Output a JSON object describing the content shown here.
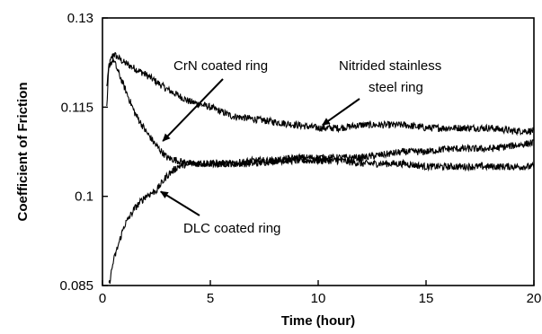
{
  "chart_data": {
    "type": "line",
    "xlabel": "Time (hour)",
    "ylabel": "Coefficient of Friction",
    "xlim": [
      0,
      20
    ],
    "ylim": [
      0.085,
      0.13
    ],
    "x_ticks": [
      {
        "value": 0,
        "label": "0"
      },
      {
        "value": 5,
        "label": "5"
      },
      {
        "value": 10,
        "label": "10"
      },
      {
        "value": 15,
        "label": "15"
      },
      {
        "value": 20,
        "label": "20"
      }
    ],
    "y_ticks": [
      {
        "value": 0.085,
        "label": "0.085"
      },
      {
        "value": 0.1,
        "label": "0.1"
      },
      {
        "value": 0.115,
        "label": "0.115"
      },
      {
        "value": 0.13,
        "label": "0.13"
      }
    ],
    "grid": false,
    "legend": "none",
    "series": [
      {
        "name": "Nitrided stainless steel ring",
        "points": [
          [
            0.2,
            0.115
          ],
          [
            0.3,
            0.122
          ],
          [
            0.5,
            0.124
          ],
          [
            1,
            0.1225
          ],
          [
            2,
            0.1205
          ],
          [
            3,
            0.118
          ],
          [
            4,
            0.116
          ],
          [
            5,
            0.115
          ],
          [
            6,
            0.1135
          ],
          [
            7,
            0.113
          ],
          [
            8,
            0.1125
          ],
          [
            9,
            0.112
          ],
          [
            10,
            0.1115
          ],
          [
            11,
            0.1115
          ],
          [
            12,
            0.112
          ],
          [
            13,
            0.112
          ],
          [
            14,
            0.112
          ],
          [
            15,
            0.1115
          ],
          [
            16,
            0.1115
          ],
          [
            17,
            0.1115
          ],
          [
            18,
            0.1115
          ],
          [
            19,
            0.111
          ],
          [
            20,
            0.111
          ]
        ],
        "noise": 0.0006
      },
      {
        "name": "CrN coated ring",
        "points": [
          [
            0.2,
            0.118
          ],
          [
            0.3,
            0.122
          ],
          [
            0.5,
            0.123
          ],
          [
            1,
            0.1185
          ],
          [
            1.5,
            0.114
          ],
          [
            2,
            0.111
          ],
          [
            2.5,
            0.1085
          ],
          [
            3,
            0.1065
          ],
          [
            4,
            0.1055
          ],
          [
            5,
            0.1055
          ],
          [
            6,
            0.1055
          ],
          [
            7,
            0.1055
          ],
          [
            8,
            0.106
          ],
          [
            9,
            0.106
          ],
          [
            10,
            0.106
          ],
          [
            11,
            0.106
          ],
          [
            12,
            0.1055
          ],
          [
            13,
            0.1055
          ],
          [
            14,
            0.1055
          ],
          [
            15,
            0.105
          ],
          [
            16,
            0.105
          ],
          [
            17,
            0.105
          ],
          [
            18,
            0.105
          ],
          [
            19,
            0.105
          ],
          [
            20,
            0.105
          ]
        ],
        "noise": 0.0006
      },
      {
        "name": "DLC coated ring",
        "points": [
          [
            0.3,
            0.085
          ],
          [
            0.4,
            0.087
          ],
          [
            0.5,
            0.089
          ],
          [
            0.75,
            0.092
          ],
          [
            1,
            0.095
          ],
          [
            1.5,
            0.098
          ],
          [
            2,
            0.1
          ],
          [
            2.5,
            0.101
          ],
          [
            3,
            0.1035
          ],
          [
            3.5,
            0.105
          ],
          [
            4,
            0.1055
          ],
          [
            5,
            0.1055
          ],
          [
            6,
            0.1055
          ],
          [
            7,
            0.106
          ],
          [
            8,
            0.106
          ],
          [
            9,
            0.1065
          ],
          [
            10,
            0.1065
          ],
          [
            11,
            0.1065
          ],
          [
            12,
            0.1065
          ],
          [
            13,
            0.107
          ],
          [
            14,
            0.1075
          ],
          [
            15,
            0.1075
          ],
          [
            16,
            0.108
          ],
          [
            17,
            0.108
          ],
          [
            18,
            0.108
          ],
          [
            19,
            0.1085
          ],
          [
            20,
            0.109
          ]
        ],
        "noise": 0.0006
      }
    ],
    "annotations": [
      {
        "text": "CrN coated ring",
        "arrow_to": [
          2.8,
          0.1093
        ]
      },
      {
        "lines": [
          "Nitrided stainless",
          "steel ring"
        ],
        "arrow_to": [
          10.2,
          0.112
        ]
      },
      {
        "text": "DLC coated ring",
        "arrow_to": [
          2.7,
          0.1008
        ]
      }
    ]
  }
}
